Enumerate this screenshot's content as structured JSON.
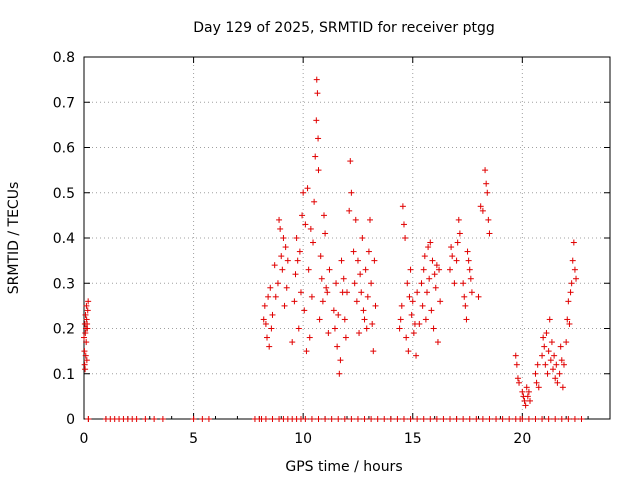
{
  "chart_data": {
    "type": "scatter",
    "title": "Day 129 of 2025, SRMTID for receiver ptgg",
    "xlabel": "GPS time / hours",
    "ylabel": "SRMTID / TECUs",
    "xlim": [
      0,
      24
    ],
    "ylim": [
      0,
      0.8
    ],
    "x_ticks": [
      0,
      5,
      10,
      15,
      20
    ],
    "x_tick_labels": [
      "0",
      "5",
      "10",
      "15",
      "20"
    ],
    "y_ticks": [
      0,
      0.1,
      0.2,
      0.3,
      0.4,
      0.5,
      0.6,
      0.7,
      0.8
    ],
    "y_tick_labels": [
      "0",
      "0.1",
      "0.2",
      "0.3",
      "0.4",
      "0.5",
      "0.6",
      "0.7",
      "0.8"
    ],
    "grid": true,
    "marker": "+",
    "color": "#e00000",
    "series": [
      {
        "name": "SRMTID",
        "points": [
          [
            0.0,
            0.18
          ],
          [
            0.02,
            0.15
          ],
          [
            0.03,
            0.12
          ],
          [
            0.04,
            0.21
          ],
          [
            0.05,
            0.11
          ],
          [
            0.06,
            0.19
          ],
          [
            0.07,
            0.23
          ],
          [
            0.08,
            0.14
          ],
          [
            0.09,
            0.2
          ],
          [
            0.1,
            0.17
          ],
          [
            0.11,
            0.25
          ],
          [
            0.12,
            0.22
          ],
          [
            0.13,
            0.13
          ],
          [
            0.14,
            0.21
          ],
          [
            0.15,
            0.2
          ],
          [
            0.17,
            0.24
          ],
          [
            0.19,
            0.26
          ],
          [
            0.2,
            0.0
          ],
          [
            8.2,
            0.22
          ],
          [
            8.25,
            0.25
          ],
          [
            8.3,
            0.21
          ],
          [
            8.35,
            0.18
          ],
          [
            8.4,
            0.27
          ],
          [
            8.45,
            0.16
          ],
          [
            8.5,
            0.29
          ],
          [
            8.55,
            0.2
          ],
          [
            8.6,
            0.23
          ],
          [
            8.7,
            0.34
          ],
          [
            8.75,
            0.27
          ],
          [
            8.85,
            0.3
          ],
          [
            8.9,
            0.44
          ],
          [
            8.95,
            0.42
          ],
          [
            9.0,
            0.36
          ],
          [
            9.05,
            0.33
          ],
          [
            9.1,
            0.4
          ],
          [
            9.15,
            0.25
          ],
          [
            9.2,
            0.38
          ],
          [
            9.25,
            0.29
          ],
          [
            9.3,
            0.35
          ],
          [
            9.5,
            0.17
          ],
          [
            9.6,
            0.26
          ],
          [
            9.65,
            0.32
          ],
          [
            9.7,
            0.4
          ],
          [
            9.75,
            0.35
          ],
          [
            9.8,
            0.2
          ],
          [
            9.85,
            0.37
          ],
          [
            9.9,
            0.28
          ],
          [
            9.95,
            0.45
          ],
          [
            10.0,
            0.5
          ],
          [
            10.05,
            0.24
          ],
          [
            10.1,
            0.43
          ],
          [
            10.15,
            0.15
          ],
          [
            10.2,
            0.51
          ],
          [
            10.25,
            0.33
          ],
          [
            10.3,
            0.18
          ],
          [
            10.35,
            0.42
          ],
          [
            10.4,
            0.27
          ],
          [
            10.45,
            0.39
          ],
          [
            10.5,
            0.48
          ],
          [
            10.55,
            0.58
          ],
          [
            10.6,
            0.66
          ],
          [
            10.62,
            0.75
          ],
          [
            10.65,
            0.72
          ],
          [
            10.68,
            0.62
          ],
          [
            10.7,
            0.55
          ],
          [
            10.75,
            0.22
          ],
          [
            10.8,
            0.36
          ],
          [
            10.85,
            0.31
          ],
          [
            10.9,
            0.26
          ],
          [
            10.95,
            0.45
          ],
          [
            11.0,
            0.41
          ],
          [
            11.05,
            0.29
          ],
          [
            11.1,
            0.28
          ],
          [
            11.15,
            0.19
          ],
          [
            11.2,
            0.33
          ],
          [
            11.4,
            0.24
          ],
          [
            11.45,
            0.2
          ],
          [
            11.5,
            0.3
          ],
          [
            11.55,
            0.16
          ],
          [
            11.6,
            0.23
          ],
          [
            11.65,
            0.1
          ],
          [
            11.7,
            0.13
          ],
          [
            11.75,
            0.35
          ],
          [
            11.8,
            0.28
          ],
          [
            11.85,
            0.31
          ],
          [
            11.9,
            0.22
          ],
          [
            11.95,
            0.18
          ],
          [
            12.0,
            0.28
          ],
          [
            12.1,
            0.46
          ],
          [
            12.15,
            0.57
          ],
          [
            12.2,
            0.5
          ],
          [
            12.3,
            0.37
          ],
          [
            12.35,
            0.3
          ],
          [
            12.4,
            0.44
          ],
          [
            12.45,
            0.26
          ],
          [
            12.5,
            0.35
          ],
          [
            12.55,
            0.19
          ],
          [
            12.6,
            0.32
          ],
          [
            12.65,
            0.28
          ],
          [
            12.7,
            0.4
          ],
          [
            12.75,
            0.24
          ],
          [
            12.8,
            0.22
          ],
          [
            12.85,
            0.33
          ],
          [
            12.9,
            0.2
          ],
          [
            12.95,
            0.27
          ],
          [
            13.0,
            0.37
          ],
          [
            13.05,
            0.44
          ],
          [
            13.1,
            0.3
          ],
          [
            13.15,
            0.21
          ],
          [
            13.2,
            0.15
          ],
          [
            13.25,
            0.35
          ],
          [
            13.3,
            0.25
          ],
          [
            14.4,
            0.2
          ],
          [
            14.45,
            0.22
          ],
          [
            14.5,
            0.25
          ],
          [
            14.55,
            0.47
          ],
          [
            14.6,
            0.43
          ],
          [
            14.65,
            0.4
          ],
          [
            14.7,
            0.18
          ],
          [
            14.75,
            0.3
          ],
          [
            14.8,
            0.15
          ],
          [
            14.85,
            0.27
          ],
          [
            14.9,
            0.33
          ],
          [
            14.95,
            0.23
          ],
          [
            15.0,
            0.26
          ],
          [
            15.05,
            0.19
          ],
          [
            15.1,
            0.21
          ],
          [
            15.15,
            0.14
          ],
          [
            15.2,
            0.28
          ],
          [
            15.3,
            0.21
          ],
          [
            15.4,
            0.3
          ],
          [
            15.45,
            0.25
          ],
          [
            15.5,
            0.33
          ],
          [
            15.55,
            0.36
          ],
          [
            15.6,
            0.22
          ],
          [
            15.65,
            0.28
          ],
          [
            15.7,
            0.38
          ],
          [
            15.75,
            0.31
          ],
          [
            15.8,
            0.39
          ],
          [
            15.85,
            0.24
          ],
          [
            15.9,
            0.35
          ],
          [
            15.95,
            0.2
          ],
          [
            16.0,
            0.32
          ],
          [
            16.05,
            0.29
          ],
          [
            16.1,
            0.34
          ],
          [
            16.15,
            0.17
          ],
          [
            16.2,
            0.33
          ],
          [
            16.25,
            0.26
          ],
          [
            16.7,
            0.33
          ],
          [
            16.75,
            0.38
          ],
          [
            16.8,
            0.36
          ],
          [
            16.9,
            0.3
          ],
          [
            17.0,
            0.35
          ],
          [
            17.05,
            0.39
          ],
          [
            17.1,
            0.44
          ],
          [
            17.15,
            0.41
          ],
          [
            17.3,
            0.3
          ],
          [
            17.35,
            0.27
          ],
          [
            17.4,
            0.25
          ],
          [
            17.45,
            0.22
          ],
          [
            17.5,
            0.37
          ],
          [
            17.55,
            0.35
          ],
          [
            17.6,
            0.33
          ],
          [
            17.65,
            0.31
          ],
          [
            17.7,
            0.28
          ],
          [
            18.0,
            0.27
          ],
          [
            18.1,
            0.47
          ],
          [
            18.2,
            0.46
          ],
          [
            18.3,
            0.55
          ],
          [
            18.35,
            0.52
          ],
          [
            18.4,
            0.5
          ],
          [
            18.45,
            0.44
          ],
          [
            18.5,
            0.41
          ],
          [
            19.7,
            0.14
          ],
          [
            19.75,
            0.12
          ],
          [
            19.8,
            0.09
          ],
          [
            19.85,
            0.08
          ],
          [
            19.9,
            0.0
          ],
          [
            20.0,
            0.06
          ],
          [
            20.05,
            0.05
          ],
          [
            20.1,
            0.04
          ],
          [
            20.15,
            0.03
          ],
          [
            20.2,
            0.07
          ],
          [
            20.25,
            0.05
          ],
          [
            20.3,
            0.06
          ],
          [
            20.35,
            0.04
          ],
          [
            20.6,
            0.1
          ],
          [
            20.65,
            0.08
          ],
          [
            20.7,
            0.12
          ],
          [
            20.75,
            0.07
          ],
          [
            20.9,
            0.14
          ],
          [
            20.95,
            0.18
          ],
          [
            21.0,
            0.16
          ],
          [
            21.05,
            0.12
          ],
          [
            21.1,
            0.19
          ],
          [
            21.15,
            0.1
          ],
          [
            21.2,
            0.15
          ],
          [
            21.25,
            0.22
          ],
          [
            21.3,
            0.13
          ],
          [
            21.35,
            0.17
          ],
          [
            21.4,
            0.11
          ],
          [
            21.45,
            0.14
          ],
          [
            21.5,
            0.09
          ],
          [
            21.55,
            0.12
          ],
          [
            21.6,
            0.08
          ],
          [
            21.7,
            0.1
          ],
          [
            21.75,
            0.16
          ],
          [
            21.8,
            0.13
          ],
          [
            21.85,
            0.07
          ],
          [
            21.9,
            0.12
          ],
          [
            22.0,
            0.17
          ],
          [
            22.05,
            0.22
          ],
          [
            22.1,
            0.26
          ],
          [
            22.15,
            0.21
          ],
          [
            22.2,
            0.28
          ],
          [
            22.25,
            0.3
          ],
          [
            22.3,
            0.35
          ],
          [
            22.35,
            0.39
          ],
          [
            22.4,
            0.33
          ],
          [
            22.45,
            0.31
          ]
        ]
      }
    ],
    "zero_band_x": [
      0.2,
      1.0,
      1.2,
      1.4,
      1.6,
      1.8,
      2.0,
      2.2,
      2.4,
      2.8,
      3.2,
      3.6,
      5.0,
      5.4,
      5.7,
      7.8,
      8.0,
      8.1,
      8.3,
      8.6,
      8.9,
      9.1,
      9.3,
      9.5,
      9.7,
      9.9,
      10.1,
      10.4,
      10.7,
      11.0,
      11.3,
      11.6,
      11.9,
      12.2,
      12.5,
      12.8,
      13.1,
      13.4,
      13.7,
      14.0,
      14.3,
      14.6,
      14.9,
      15.2,
      15.5,
      15.8,
      16.1,
      16.4,
      16.7,
      17.0,
      17.3,
      17.6,
      17.9,
      18.2,
      18.5,
      18.8,
      19.1,
      19.4,
      19.7,
      20.0,
      20.3,
      20.6,
      20.9,
      21.2,
      21.5,
      21.8,
      22.1,
      22.4,
      22.7
    ]
  }
}
